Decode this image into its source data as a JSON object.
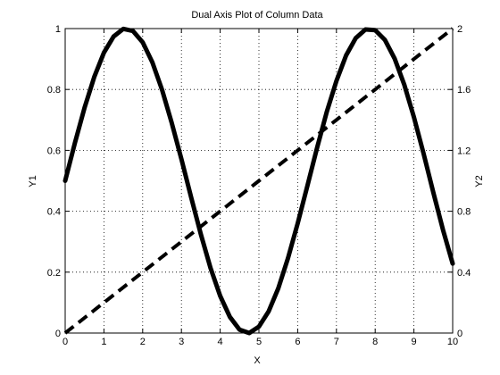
{
  "chart_data": {
    "type": "line",
    "title": "Dual Axis Plot of Column Data",
    "xlabel": "X",
    "ylabel_left": "Y1",
    "ylabel_right": "Y2",
    "xlim": [
      0,
      10
    ],
    "ylim_left": [
      0,
      1
    ],
    "ylim_right": [
      0,
      2
    ],
    "x_ticks": [
      "0",
      "1",
      "2",
      "3",
      "4",
      "5",
      "6",
      "7",
      "8",
      "9",
      "10"
    ],
    "y_left_ticks": [
      "0",
      "0.2",
      "0.4",
      "0.6",
      "0.8",
      "1"
    ],
    "y_right_ticks": [
      "0",
      "0.4",
      "0.8",
      "1.2",
      "1.6",
      "2"
    ],
    "grid": true,
    "series": [
      {
        "axis": "left",
        "style": "solid",
        "x": [
          0,
          0.25,
          0.5,
          0.75,
          1,
          1.25,
          1.5,
          1.75,
          2,
          2.25,
          2.5,
          2.75,
          3,
          3.25,
          3.5,
          3.75,
          4,
          4.25,
          4.5,
          4.75,
          5,
          5.25,
          5.5,
          5.75,
          6,
          6.25,
          6.5,
          6.75,
          7,
          7.25,
          7.5,
          7.75,
          8,
          8.25,
          8.5,
          8.75,
          9,
          9.25,
          9.5,
          9.75,
          10
        ],
        "values": [
          0.5,
          0.624,
          0.74,
          0.841,
          0.921,
          0.974,
          0.999,
          0.992,
          0.955,
          0.889,
          0.799,
          0.69,
          0.571,
          0.446,
          0.325,
          0.214,
          0.122,
          0.053,
          0.011,
          0.0,
          0.021,
          0.071,
          0.147,
          0.246,
          0.36,
          0.483,
          0.608,
          0.726,
          0.828,
          0.912,
          0.969,
          0.997,
          0.995,
          0.963,
          0.902,
          0.816,
          0.709,
          0.589,
          0.462,
          0.339,
          0.228
        ]
      },
      {
        "axis": "right",
        "style": "dashed",
        "x": [
          0,
          10
        ],
        "values": [
          0,
          2
        ]
      }
    ]
  }
}
